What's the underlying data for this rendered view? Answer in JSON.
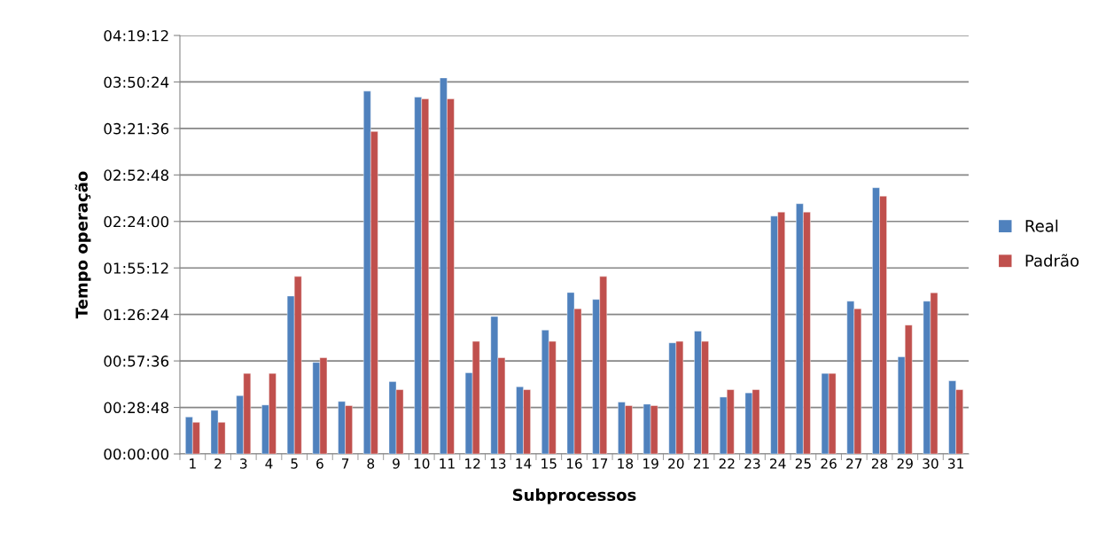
{
  "chart_data": {
    "type": "bar",
    "xlabel": "Subprocessos",
    "ylabel": "Tempo operação",
    "categories": [
      "1",
      "2",
      "3",
      "4",
      "5",
      "6",
      "7",
      "8",
      "9",
      "10",
      "11",
      "12",
      "13",
      "14",
      "15",
      "16",
      "17",
      "18",
      "19",
      "20",
      "21",
      "22",
      "23",
      "24",
      "25",
      "26",
      "27",
      "28",
      "29",
      "30",
      "31"
    ],
    "series": [
      {
        "name": "Real",
        "color": "#4f81bd",
        "values": [
          22.9,
          27.0,
          36.1,
          30.3,
          97.8,
          56.7,
          32.5,
          224.7,
          44.8,
          221.0,
          232.9,
          50.3,
          85.1,
          41.6,
          76.7,
          100.0,
          95.7,
          32.1,
          30.8,
          68.8,
          76.1,
          35.2,
          37.8,
          147.3,
          155.0,
          49.9,
          94.6,
          164.9,
          60.2,
          94.6,
          45.3
        ]
      },
      {
        "name": "Padrão",
        "color": "#c0504d",
        "values": [
          19.6,
          19.6,
          49.9,
          49.9,
          109.9,
          59.6,
          29.9,
          199.7,
          39.8,
          219.9,
          219.9,
          69.7,
          59.6,
          39.8,
          69.7,
          89.9,
          109.9,
          29.9,
          29.9,
          69.7,
          69.7,
          39.8,
          39.8,
          149.8,
          149.8,
          49.9,
          89.9,
          159.7,
          79.8,
          99.8,
          39.8
        ]
      }
    ],
    "ylim": [
      0,
      259.2
    ],
    "yticks": [
      {
        "value": 0,
        "label": "00:00:00"
      },
      {
        "value": 28.8,
        "label": "00:28:48"
      },
      {
        "value": 57.6,
        "label": "00:57:36"
      },
      {
        "value": 86.4,
        "label": "01:26:24"
      },
      {
        "value": 115.2,
        "label": "01:55:12"
      },
      {
        "value": 144,
        "label": "02:24:00"
      },
      {
        "value": 172.8,
        "label": "02:52:48"
      },
      {
        "value": 201.6,
        "label": "03:21:36"
      },
      {
        "value": 230.4,
        "label": "03:50:24"
      },
      {
        "value": 259.2,
        "label": "04:19:12"
      }
    ],
    "grid": "y",
    "legend": "right"
  }
}
